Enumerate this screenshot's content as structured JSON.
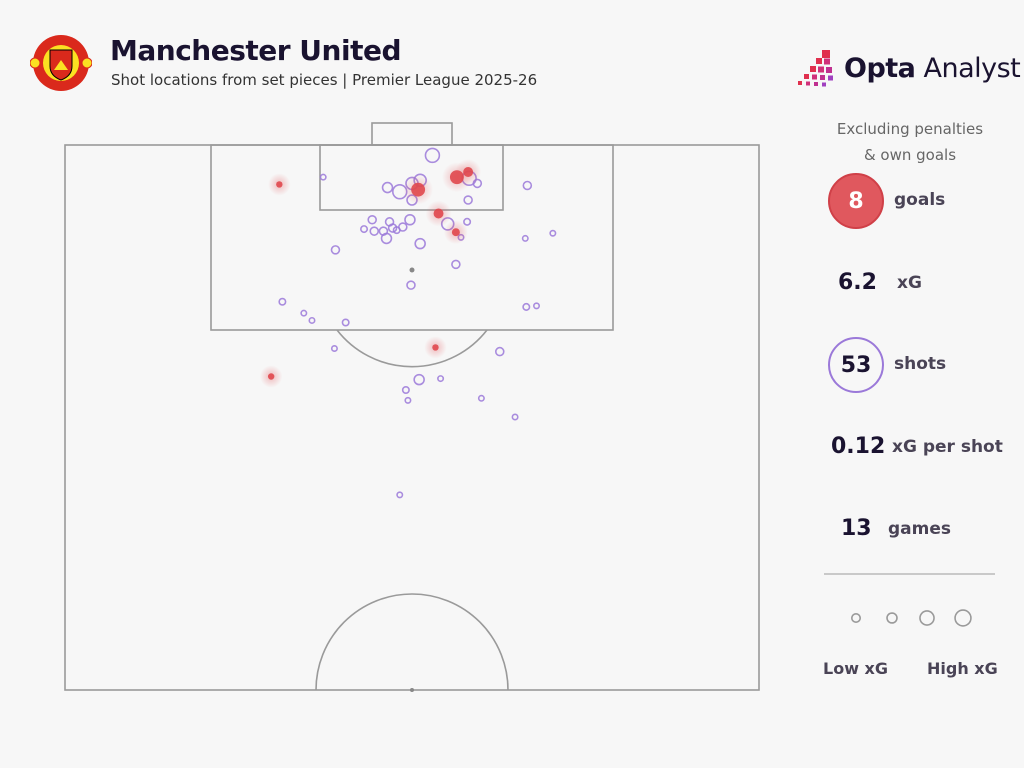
{
  "header": {
    "title": "Manchester United",
    "subtitle": "Shot locations from set pieces | Premier League 2025-26",
    "crest_text": [
      "MANCHESTER",
      "UNITED"
    ],
    "brand": {
      "bold": "Opta",
      "light": "Analyst"
    }
  },
  "panel": {
    "note_line1": "Excluding penalties",
    "note_line2": "& own goals",
    "stats": {
      "goals": {
        "value": "8",
        "label": "goals"
      },
      "xg": {
        "value": "6.2",
        "label": "xG"
      },
      "shots": {
        "value": "53",
        "label": "shots"
      },
      "xg_per_shot": {
        "value": "0.12",
        "label": "xG per shot"
      },
      "games": {
        "value": "13",
        "label": "games"
      }
    },
    "legend": {
      "low": "Low xG",
      "high": "High xG",
      "sample_xg": [
        0.03,
        0.08,
        0.33,
        0.5
      ]
    }
  },
  "colors": {
    "goal": "#e0484e",
    "shot": "#9b79d9",
    "pitch_line": "#9a9a9a",
    "title": "#1a1330",
    "background": "#f7f7f7"
  },
  "chart_data": {
    "type": "scatter",
    "description_units": "metres: x across pitch from left touchline, y distance from goal line",
    "pitch": {
      "width_m": 68,
      "half_length_m": 52.5
    },
    "shots": [
      {
        "x": 21.0,
        "y": 3.8,
        "xg": 0.03,
        "goal": true
      },
      {
        "x": 34.6,
        "y": 4.3,
        "xg": 0.5,
        "goal": true
      },
      {
        "x": 38.4,
        "y": 3.1,
        "xg": 0.5,
        "goal": true
      },
      {
        "x": 39.5,
        "y": 2.6,
        "xg": 0.18,
        "goal": true
      },
      {
        "x": 36.6,
        "y": 6.6,
        "xg": 0.18,
        "goal": true
      },
      {
        "x": 38.3,
        "y": 8.4,
        "xg": 0.08,
        "goal": true
      },
      {
        "x": 36.3,
        "y": 19.5,
        "xg": 0.03,
        "goal": true
      },
      {
        "x": 20.2,
        "y": 22.3,
        "xg": 0.03,
        "goal": true
      },
      {
        "x": 36.0,
        "y": 1.0,
        "xg": 0.5,
        "goal": false
      },
      {
        "x": 25.3,
        "y": 3.1,
        "xg": 0.01,
        "goal": false
      },
      {
        "x": 31.6,
        "y": 4.1,
        "xg": 0.18,
        "goal": false
      },
      {
        "x": 32.8,
        "y": 4.5,
        "xg": 0.5,
        "goal": false
      },
      {
        "x": 34.0,
        "y": 3.7,
        "xg": 0.33,
        "goal": false
      },
      {
        "x": 34.8,
        "y": 3.4,
        "xg": 0.33,
        "goal": false
      },
      {
        "x": 34.0,
        "y": 5.3,
        "xg": 0.18,
        "goal": false
      },
      {
        "x": 39.6,
        "y": 3.2,
        "xg": 0.5,
        "goal": false
      },
      {
        "x": 40.4,
        "y": 3.7,
        "xg": 0.08,
        "goal": false
      },
      {
        "x": 39.5,
        "y": 5.3,
        "xg": 0.08,
        "goal": false
      },
      {
        "x": 45.3,
        "y": 3.9,
        "xg": 0.08,
        "goal": false
      },
      {
        "x": 30.1,
        "y": 7.2,
        "xg": 0.08,
        "goal": false
      },
      {
        "x": 31.8,
        "y": 7.4,
        "xg": 0.08,
        "goal": false
      },
      {
        "x": 32.1,
        "y": 8.0,
        "xg": 0.08,
        "goal": false
      },
      {
        "x": 31.2,
        "y": 8.3,
        "xg": 0.08,
        "goal": false
      },
      {
        "x": 30.3,
        "y": 8.3,
        "xg": 0.08,
        "goal": false
      },
      {
        "x": 31.5,
        "y": 9.0,
        "xg": 0.18,
        "goal": false
      },
      {
        "x": 33.1,
        "y": 7.9,
        "xg": 0.08,
        "goal": false
      },
      {
        "x": 33.8,
        "y": 7.2,
        "xg": 0.18,
        "goal": false
      },
      {
        "x": 32.5,
        "y": 8.2,
        "xg": 0.03,
        "goal": false
      },
      {
        "x": 29.3,
        "y": 8.1,
        "xg": 0.03,
        "goal": false
      },
      {
        "x": 37.5,
        "y": 7.6,
        "xg": 0.33,
        "goal": false
      },
      {
        "x": 39.4,
        "y": 7.4,
        "xg": 0.03,
        "goal": false
      },
      {
        "x": 38.8,
        "y": 8.9,
        "xg": 0.01,
        "goal": false
      },
      {
        "x": 34.8,
        "y": 9.5,
        "xg": 0.18,
        "goal": false
      },
      {
        "x": 26.5,
        "y": 10.1,
        "xg": 0.08,
        "goal": false
      },
      {
        "x": 45.1,
        "y": 9.0,
        "xg": 0.01,
        "goal": false
      },
      {
        "x": 47.8,
        "y": 8.5,
        "xg": 0.01,
        "goal": false
      },
      {
        "x": 38.3,
        "y": 11.5,
        "xg": 0.08,
        "goal": false
      },
      {
        "x": 33.9,
        "y": 13.5,
        "xg": 0.08,
        "goal": false
      },
      {
        "x": 21.3,
        "y": 15.1,
        "xg": 0.03,
        "goal": false
      },
      {
        "x": 23.4,
        "y": 16.2,
        "xg": 0.01,
        "goal": false
      },
      {
        "x": 24.2,
        "y": 16.9,
        "xg": 0.01,
        "goal": false
      },
      {
        "x": 27.5,
        "y": 17.1,
        "xg": 0.03,
        "goal": false
      },
      {
        "x": 45.2,
        "y": 15.6,
        "xg": 0.03,
        "goal": false
      },
      {
        "x": 46.2,
        "y": 15.5,
        "xg": 0.01,
        "goal": false
      },
      {
        "x": 26.4,
        "y": 19.6,
        "xg": 0.01,
        "goal": false
      },
      {
        "x": 42.6,
        "y": 19.9,
        "xg": 0.08,
        "goal": false
      },
      {
        "x": 34.7,
        "y": 22.6,
        "xg": 0.18,
        "goal": false
      },
      {
        "x": 36.8,
        "y": 22.5,
        "xg": 0.01,
        "goal": false
      },
      {
        "x": 33.4,
        "y": 23.6,
        "xg": 0.03,
        "goal": false
      },
      {
        "x": 33.6,
        "y": 24.6,
        "xg": 0.01,
        "goal": false
      },
      {
        "x": 40.8,
        "y": 24.4,
        "xg": 0.01,
        "goal": false
      },
      {
        "x": 44.1,
        "y": 26.2,
        "xg": 0.01,
        "goal": false
      },
      {
        "x": 32.8,
        "y": 33.7,
        "xg": 0.01,
        "goal": false
      }
    ]
  }
}
